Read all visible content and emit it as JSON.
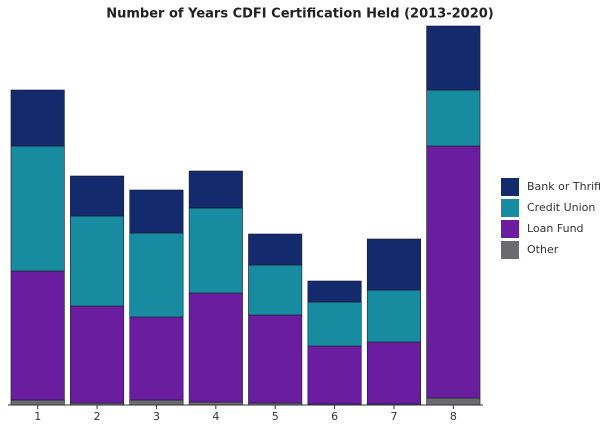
{
  "chart_data": {
    "type": "stacked_bar",
    "title": "Number of Years CDFI Certification Held (2013-2020)",
    "categories": [
      "1",
      "2",
      "3",
      "4",
      "5",
      "6",
      "7",
      "8"
    ],
    "series": [
      {
        "name": "Other",
        "color": "#6b6b6f",
        "values": [
          5,
          2,
          5,
          3,
          2,
          1,
          1,
          7
        ]
      },
      {
        "name": "Loan Fund",
        "color": "#6a1e9f",
        "values": [
          129,
          97,
          83,
          109,
          88,
          58,
          62,
          252
        ]
      },
      {
        "name": "Credit Union",
        "color": "#178b9f",
        "values": [
          125,
          90,
          84,
          85,
          50,
          44,
          52,
          56
        ]
      },
      {
        "name": "Bank or Thrift",
        "color": "#132a6d",
        "values": [
          56,
          40,
          43,
          37,
          31,
          21,
          51,
          64
        ]
      }
    ],
    "ylim": [
      0,
      379
    ],
    "legend": "right"
  }
}
